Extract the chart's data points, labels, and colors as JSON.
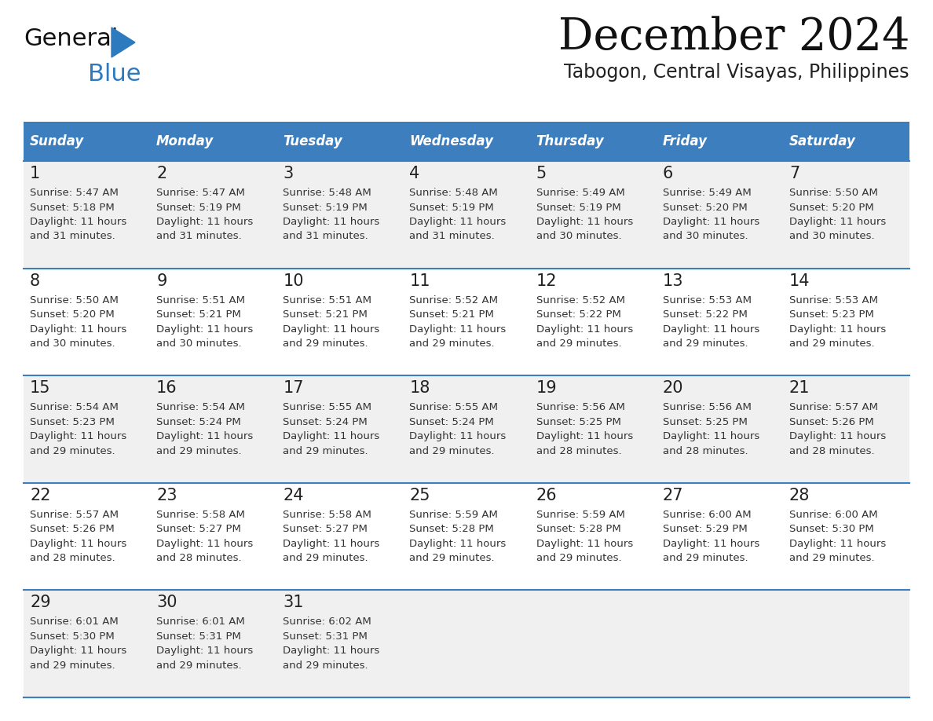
{
  "title": "December 2024",
  "subtitle": "Tabogon, Central Visayas, Philippines",
  "header_color": "#3d7ebf",
  "header_text_color": "#ffffff",
  "days_of_week": [
    "Sunday",
    "Monday",
    "Tuesday",
    "Wednesday",
    "Thursday",
    "Friday",
    "Saturday"
  ],
  "row_bg_colors": [
    "#f0f0f0",
    "#ffffff"
  ],
  "divider_color": "#3d7ebf",
  "text_color": "#333333",
  "day_number_color": "#222222",
  "logo_general_color": "#111111",
  "logo_blue_color": "#2d7abf",
  "calendar_data": [
    [
      {
        "day": 1,
        "sunrise": "5:47 AM",
        "sunset": "5:18 PM",
        "daylight_h": "11 hours",
        "daylight_m": "31 minutes"
      },
      {
        "day": 2,
        "sunrise": "5:47 AM",
        "sunset": "5:19 PM",
        "daylight_h": "11 hours",
        "daylight_m": "31 minutes"
      },
      {
        "day": 3,
        "sunrise": "5:48 AM",
        "sunset": "5:19 PM",
        "daylight_h": "11 hours",
        "daylight_m": "31 minutes"
      },
      {
        "day": 4,
        "sunrise": "5:48 AM",
        "sunset": "5:19 PM",
        "daylight_h": "11 hours",
        "daylight_m": "31 minutes"
      },
      {
        "day": 5,
        "sunrise": "5:49 AM",
        "sunset": "5:19 PM",
        "daylight_h": "11 hours",
        "daylight_m": "30 minutes"
      },
      {
        "day": 6,
        "sunrise": "5:49 AM",
        "sunset": "5:20 PM",
        "daylight_h": "11 hours",
        "daylight_m": "30 minutes"
      },
      {
        "day": 7,
        "sunrise": "5:50 AM",
        "sunset": "5:20 PM",
        "daylight_h": "11 hours",
        "daylight_m": "30 minutes"
      }
    ],
    [
      {
        "day": 8,
        "sunrise": "5:50 AM",
        "sunset": "5:20 PM",
        "daylight_h": "11 hours",
        "daylight_m": "30 minutes"
      },
      {
        "day": 9,
        "sunrise": "5:51 AM",
        "sunset": "5:21 PM",
        "daylight_h": "11 hours",
        "daylight_m": "30 minutes"
      },
      {
        "day": 10,
        "sunrise": "5:51 AM",
        "sunset": "5:21 PM",
        "daylight_h": "11 hours",
        "daylight_m": "29 minutes"
      },
      {
        "day": 11,
        "sunrise": "5:52 AM",
        "sunset": "5:21 PM",
        "daylight_h": "11 hours",
        "daylight_m": "29 minutes"
      },
      {
        "day": 12,
        "sunrise": "5:52 AM",
        "sunset": "5:22 PM",
        "daylight_h": "11 hours",
        "daylight_m": "29 minutes"
      },
      {
        "day": 13,
        "sunrise": "5:53 AM",
        "sunset": "5:22 PM",
        "daylight_h": "11 hours",
        "daylight_m": "29 minutes"
      },
      {
        "day": 14,
        "sunrise": "5:53 AM",
        "sunset": "5:23 PM",
        "daylight_h": "11 hours",
        "daylight_m": "29 minutes"
      }
    ],
    [
      {
        "day": 15,
        "sunrise": "5:54 AM",
        "sunset": "5:23 PM",
        "daylight_h": "11 hours",
        "daylight_m": "29 minutes"
      },
      {
        "day": 16,
        "sunrise": "5:54 AM",
        "sunset": "5:24 PM",
        "daylight_h": "11 hours",
        "daylight_m": "29 minutes"
      },
      {
        "day": 17,
        "sunrise": "5:55 AM",
        "sunset": "5:24 PM",
        "daylight_h": "11 hours",
        "daylight_m": "29 minutes"
      },
      {
        "day": 18,
        "sunrise": "5:55 AM",
        "sunset": "5:24 PM",
        "daylight_h": "11 hours",
        "daylight_m": "29 minutes"
      },
      {
        "day": 19,
        "sunrise": "5:56 AM",
        "sunset": "5:25 PM",
        "daylight_h": "11 hours",
        "daylight_m": "28 minutes"
      },
      {
        "day": 20,
        "sunrise": "5:56 AM",
        "sunset": "5:25 PM",
        "daylight_h": "11 hours",
        "daylight_m": "28 minutes"
      },
      {
        "day": 21,
        "sunrise": "5:57 AM",
        "sunset": "5:26 PM",
        "daylight_h": "11 hours",
        "daylight_m": "28 minutes"
      }
    ],
    [
      {
        "day": 22,
        "sunrise": "5:57 AM",
        "sunset": "5:26 PM",
        "daylight_h": "11 hours",
        "daylight_m": "28 minutes"
      },
      {
        "day": 23,
        "sunrise": "5:58 AM",
        "sunset": "5:27 PM",
        "daylight_h": "11 hours",
        "daylight_m": "28 minutes"
      },
      {
        "day": 24,
        "sunrise": "5:58 AM",
        "sunset": "5:27 PM",
        "daylight_h": "11 hours",
        "daylight_m": "29 minutes"
      },
      {
        "day": 25,
        "sunrise": "5:59 AM",
        "sunset": "5:28 PM",
        "daylight_h": "11 hours",
        "daylight_m": "29 minutes"
      },
      {
        "day": 26,
        "sunrise": "5:59 AM",
        "sunset": "5:28 PM",
        "daylight_h": "11 hours",
        "daylight_m": "29 minutes"
      },
      {
        "day": 27,
        "sunrise": "6:00 AM",
        "sunset": "5:29 PM",
        "daylight_h": "11 hours",
        "daylight_m": "29 minutes"
      },
      {
        "day": 28,
        "sunrise": "6:00 AM",
        "sunset": "5:30 PM",
        "daylight_h": "11 hours",
        "daylight_m": "29 minutes"
      }
    ],
    [
      {
        "day": 29,
        "sunrise": "6:01 AM",
        "sunset": "5:30 PM",
        "daylight_h": "11 hours",
        "daylight_m": "29 minutes"
      },
      {
        "day": 30,
        "sunrise": "6:01 AM",
        "sunset": "5:31 PM",
        "daylight_h": "11 hours",
        "daylight_m": "29 minutes"
      },
      {
        "day": 31,
        "sunrise": "6:02 AM",
        "sunset": "5:31 PM",
        "daylight_h": "11 hours",
        "daylight_m": "29 minutes"
      },
      null,
      null,
      null,
      null
    ]
  ]
}
